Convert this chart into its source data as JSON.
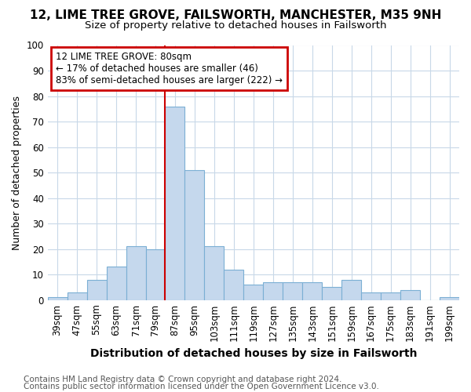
{
  "title1": "12, LIME TREE GROVE, FAILSWORTH, MANCHESTER, M35 9NH",
  "title2": "Size of property relative to detached houses in Failsworth",
  "xlabel": "Distribution of detached houses by size in Failsworth",
  "ylabel": "Number of detached properties",
  "categories": [
    "39sqm",
    "47sqm",
    "55sqm",
    "63sqm",
    "71sqm",
    "79sqm",
    "87sqm",
    "95sqm",
    "103sqm",
    "111sqm",
    "119sqm",
    "127sqm",
    "135sqm",
    "143sqm",
    "151sqm",
    "159sqm",
    "167sqm",
    "175sqm",
    "183sqm",
    "191sqm",
    "199sqm"
  ],
  "values": [
    1,
    3,
    8,
    13,
    21,
    20,
    76,
    51,
    21,
    12,
    6,
    7,
    7,
    7,
    5,
    8,
    3,
    3,
    4,
    0,
    1
  ],
  "bar_color": "#c5d8ed",
  "bar_edge_color": "#7bafd4",
  "annotation_text": "12 LIME TREE GROVE: 80sqm\n← 17% of detached houses are smaller (46)\n83% of semi-detached houses are larger (222) →",
  "annotation_box_color": "#ffffff",
  "annotation_box_edge_color": "#cc0000",
  "vline_x": 5.5,
  "vline_color": "#cc0000",
  "ylim": [
    0,
    100
  ],
  "yticks": [
    0,
    10,
    20,
    30,
    40,
    50,
    60,
    70,
    80,
    90,
    100
  ],
  "bg_color": "#ffffff",
  "plot_bg_color": "#ffffff",
  "grid_color": "#c8d8e8",
  "footer1": "Contains HM Land Registry data © Crown copyright and database right 2024.",
  "footer2": "Contains public sector information licensed under the Open Government Licence v3.0.",
  "title1_fontsize": 11,
  "title2_fontsize": 9.5,
  "xlabel_fontsize": 10,
  "ylabel_fontsize": 9,
  "tick_fontsize": 8.5,
  "annotation_fontsize": 8.5,
  "footer_fontsize": 7.5
}
